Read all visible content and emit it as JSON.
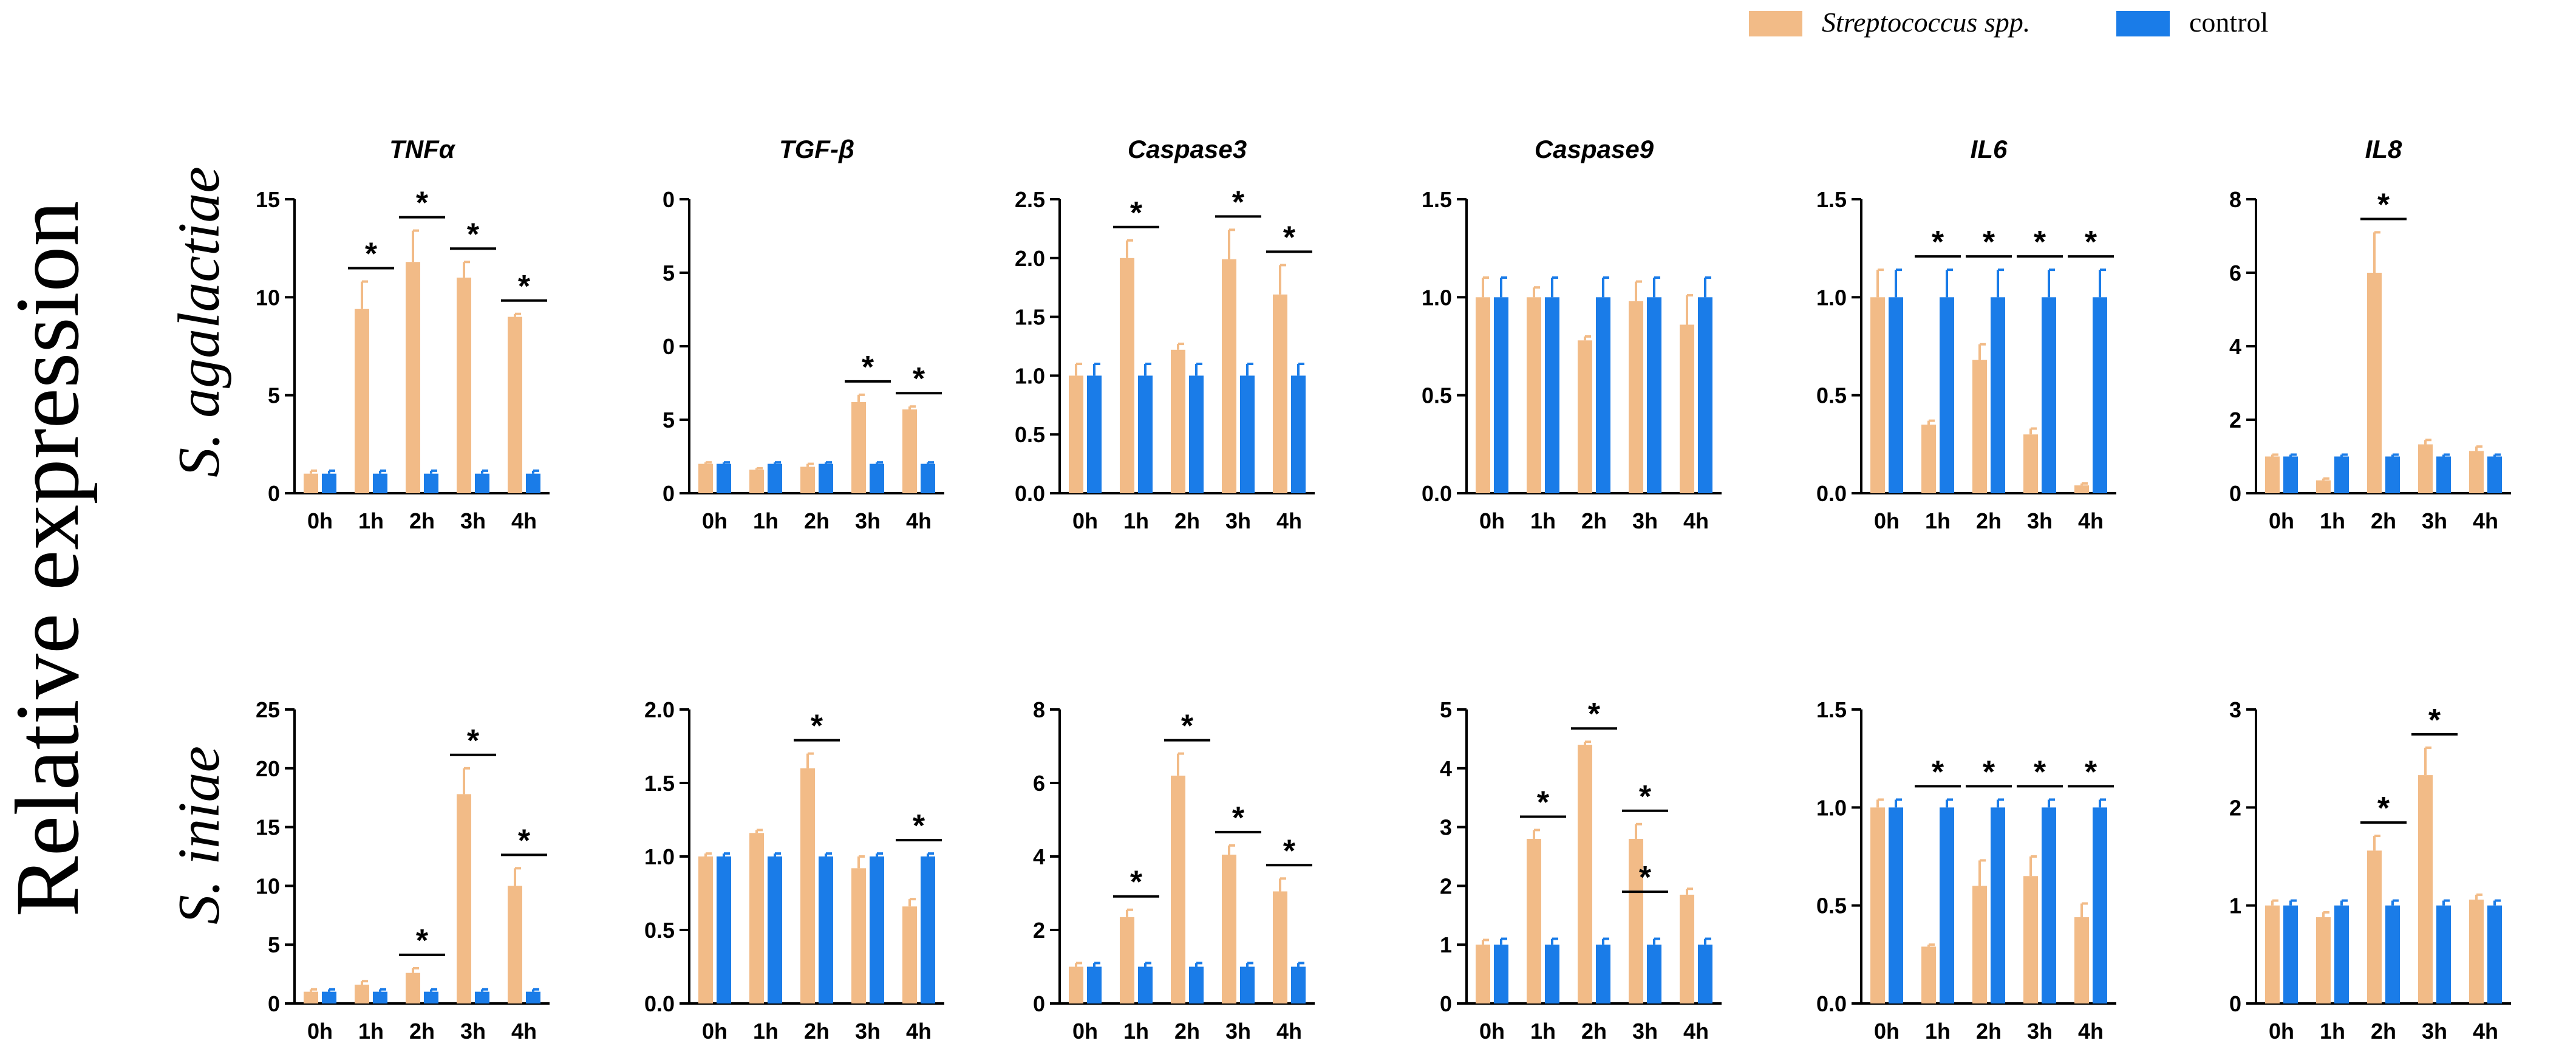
{
  "colors": {
    "infected": "#F2BB87",
    "control": "#1A7CE8",
    "axis": "#000000"
  },
  "figure": {
    "y_axis_label": "Relative expression",
    "row_labels": [
      "S. agalactiae",
      "S. iniae"
    ],
    "legend": [
      {
        "label": "Streptococcus spp.",
        "series": "infected"
      },
      {
        "label": "control",
        "series": "control"
      }
    ]
  },
  "chart_data": [
    {
      "type": "bar",
      "title": "TNFα",
      "row": 0,
      "col": 0,
      "categories": [
        "0h",
        "1h",
        "2h",
        "3h",
        "4h"
      ],
      "ylim": [
        0,
        15
      ],
      "yticks": [
        "0",
        "5",
        "10",
        "15"
      ],
      "series": [
        {
          "name": "Streptococcus spp.",
          "values": [
            1.0,
            9.4,
            11.8,
            11.0,
            9.0
          ],
          "errors": [
            0.15,
            1.4,
            1.6,
            0.8,
            0.15
          ]
        },
        {
          "name": "control",
          "values": [
            1.0,
            1.0,
            1.0,
            1.0,
            1.0
          ],
          "errors": [
            0.15,
            0.15,
            0.15,
            0.15,
            0.15
          ]
        }
      ],
      "significant": [
        "1h",
        "2h",
        "3h",
        "4h"
      ]
    },
    {
      "type": "bar",
      "title": "TGF-β",
      "row": 0,
      "col": 1,
      "categories": [
        "0h",
        "1h",
        "2h",
        "3h",
        "4h"
      ],
      "ylim": [
        0,
        10
      ],
      "yticks": [
        "0",
        "5",
        "0",
        "5",
        "0"
      ],
      "series": [
        {
          "name": "Streptococcus spp.",
          "values": [
            1.0,
            0.8,
            0.9,
            3.1,
            2.85
          ],
          "errors": [
            0.05,
            0.05,
            0.1,
            0.25,
            0.1
          ]
        },
        {
          "name": "control",
          "values": [
            1.0,
            1.0,
            1.0,
            1.0,
            1.0
          ],
          "errors": [
            0.05,
            0.05,
            0.05,
            0.05,
            0.05
          ]
        }
      ],
      "significant": [
        "3h",
        "4h"
      ]
    },
    {
      "type": "bar",
      "title": "Caspase3",
      "row": 0,
      "col": 2,
      "categories": [
        "0h",
        "1h",
        "2h",
        "3h",
        "4h"
      ],
      "ylim": [
        0,
        2.5
      ],
      "yticks": [
        "0.0",
        "0.5",
        "1.0",
        "1.5",
        "2.0",
        "2.5"
      ],
      "series": [
        {
          "name": "Streptococcus spp.",
          "values": [
            1.0,
            2.0,
            1.22,
            1.99,
            1.69
          ],
          "errors": [
            0.1,
            0.15,
            0.05,
            0.25,
            0.25
          ]
        },
        {
          "name": "control",
          "values": [
            1.0,
            1.0,
            1.0,
            1.0,
            1.0
          ],
          "errors": [
            0.1,
            0.1,
            0.1,
            0.1,
            0.1
          ]
        }
      ],
      "significant": [
        "1h",
        "3h",
        "4h"
      ]
    },
    {
      "type": "bar",
      "title": "Caspase9",
      "row": 0,
      "col": 3,
      "categories": [
        "0h",
        "1h",
        "2h",
        "3h",
        "4h"
      ],
      "ylim": [
        0,
        1.5
      ],
      "yticks": [
        "0.0",
        "0.5",
        "1.0",
        "1.5"
      ],
      "series": [
        {
          "name": "Streptococcus spp.",
          "values": [
            1.0,
            1.0,
            0.78,
            0.98,
            0.86
          ],
          "errors": [
            0.1,
            0.05,
            0.02,
            0.1,
            0.15
          ]
        },
        {
          "name": "control",
          "values": [
            1.0,
            1.0,
            1.0,
            1.0,
            1.0
          ],
          "errors": [
            0.1,
            0.1,
            0.1,
            0.1,
            0.1
          ]
        }
      ],
      "significant": []
    },
    {
      "type": "bar",
      "title": "IL6",
      "row": 0,
      "col": 4,
      "categories": [
        "0h",
        "1h",
        "2h",
        "3h",
        "4h"
      ],
      "ylim": [
        0,
        1.5
      ],
      "yticks": [
        "0.0",
        "0.5",
        "1.0",
        "1.5"
      ],
      "series": [
        {
          "name": "Streptococcus spp.",
          "values": [
            1.0,
            0.35,
            0.68,
            0.3,
            0.04
          ],
          "errors": [
            0.14,
            0.02,
            0.08,
            0.03,
            0.01
          ]
        },
        {
          "name": "control",
          "values": [
            1.0,
            1.0,
            1.0,
            1.0,
            1.0
          ],
          "errors": [
            0.14,
            0.14,
            0.14,
            0.14,
            0.14
          ]
        }
      ],
      "significant": [
        "1h",
        "2h",
        "3h",
        "4h"
      ]
    },
    {
      "type": "bar",
      "title": "IL8",
      "row": 0,
      "col": 5,
      "categories": [
        "0h",
        "1h",
        "2h",
        "3h",
        "4h"
      ],
      "ylim": [
        0,
        8
      ],
      "yticks": [
        "0",
        "2",
        "4",
        "6",
        "8"
      ],
      "series": [
        {
          "name": "Streptococcus spp.",
          "values": [
            1.0,
            0.35,
            6.0,
            1.33,
            1.15
          ],
          "errors": [
            0.05,
            0.05,
            1.1,
            0.12,
            0.12
          ]
        },
        {
          "name": "control",
          "values": [
            1.0,
            1.0,
            1.0,
            1.0,
            1.0
          ],
          "errors": [
            0.05,
            0.05,
            0.05,
            0.05,
            0.05
          ]
        }
      ],
      "significant": [
        "2h"
      ]
    },
    {
      "type": "bar",
      "title": "",
      "row": 1,
      "col": 0,
      "categories": [
        "0h",
        "1h",
        "2h",
        "3h",
        "4h"
      ],
      "ylim": [
        0,
        25
      ],
      "yticks": [
        "0",
        "5",
        "10",
        "15",
        "20",
        "25"
      ],
      "series": [
        {
          "name": "Streptococcus spp.",
          "values": [
            1.0,
            1.6,
            2.6,
            17.8,
            10.0
          ],
          "errors": [
            0.2,
            0.3,
            0.4,
            2.2,
            1.5
          ]
        },
        {
          "name": "control",
          "values": [
            1.0,
            1.0,
            1.0,
            1.0,
            1.0
          ],
          "errors": [
            0.2,
            0.2,
            0.2,
            0.2,
            0.2
          ]
        }
      ],
      "significant": [
        "2h",
        "3h",
        "4h"
      ]
    },
    {
      "type": "bar",
      "title": "",
      "row": 1,
      "col": 1,
      "categories": [
        "0h",
        "1h",
        "2h",
        "3h",
        "4h"
      ],
      "ylim": [
        0,
        2.0
      ],
      "yticks": [
        "0.0",
        "0.5",
        "1.0",
        "1.5",
        "2.0"
      ],
      "series": [
        {
          "name": "Streptococcus spp.",
          "values": [
            1.0,
            1.16,
            1.6,
            0.92,
            0.66
          ],
          "errors": [
            0.02,
            0.02,
            0.1,
            0.08,
            0.05
          ]
        },
        {
          "name": "control",
          "values": [
            1.0,
            1.0,
            1.0,
            1.0,
            1.0
          ],
          "errors": [
            0.02,
            0.02,
            0.02,
            0.02,
            0.02
          ]
        }
      ],
      "significant": [
        "2h",
        "4h"
      ]
    },
    {
      "type": "bar",
      "title": "",
      "row": 1,
      "col": 2,
      "categories": [
        "0h",
        "1h",
        "2h",
        "3h",
        "4h"
      ],
      "ylim": [
        0,
        8
      ],
      "yticks": [
        "0",
        "2",
        "4",
        "6",
        "8"
      ],
      "series": [
        {
          "name": "Streptococcus spp.",
          "values": [
            1.0,
            2.35,
            6.2,
            4.05,
            3.05
          ],
          "errors": [
            0.1,
            0.2,
            0.6,
            0.25,
            0.35
          ]
        },
        {
          "name": "control",
          "values": [
            1.0,
            1.0,
            1.0,
            1.0,
            1.0
          ],
          "errors": [
            0.1,
            0.1,
            0.1,
            0.1,
            0.1
          ]
        }
      ],
      "significant": [
        "1h",
        "2h",
        "3h",
        "4h"
      ]
    },
    {
      "type": "bar",
      "title": "",
      "row": 1,
      "col": 3,
      "categories": [
        "0h",
        "1h",
        "2h",
        "3h",
        "4h"
      ],
      "ylim": [
        0,
        5
      ],
      "yticks": [
        "0",
        "1",
        "2",
        "3",
        "4",
        "5"
      ],
      "series": [
        {
          "name": "Streptococcus spp.",
          "values": [
            1.0,
            2.8,
            4.4,
            2.8,
            1.85
          ],
          "errors": [
            0.08,
            0.15,
            0.05,
            0.25,
            0.1
          ]
        },
        {
          "name": "control",
          "values": [
            1.0,
            1.0,
            1.0,
            1.0,
            1.0
          ],
          "errors": [
            0.1,
            0.1,
            0.1,
            0.1,
            0.1
          ]
        }
      ],
      "significant": [
        "1h",
        "2h",
        "3h_a",
        "3h_b"
      ]
    },
    {
      "type": "bar",
      "title": "",
      "row": 1,
      "col": 4,
      "categories": [
        "0h",
        "1h",
        "2h",
        "3h",
        "4h"
      ],
      "ylim": [
        0,
        1.5
      ],
      "yticks": [
        "0.0",
        "0.5",
        "1.0",
        "1.5"
      ],
      "series": [
        {
          "name": "Streptococcus spp.",
          "values": [
            1.0,
            0.29,
            0.6,
            0.65,
            0.44
          ],
          "errors": [
            0.04,
            0.01,
            0.13,
            0.1,
            0.07
          ]
        },
        {
          "name": "control",
          "values": [
            1.0,
            1.0,
            1.0,
            1.0,
            1.0
          ],
          "errors": [
            0.04,
            0.04,
            0.04,
            0.04,
            0.04
          ]
        }
      ],
      "significant": [
        "1h",
        "2h",
        "3h",
        "4h"
      ]
    },
    {
      "type": "bar",
      "title": "",
      "row": 1,
      "col": 5,
      "categories": [
        "0h",
        "1h",
        "2h",
        "3h",
        "4h"
      ],
      "ylim": [
        0,
        3
      ],
      "yticks": [
        "0",
        "1",
        "2",
        "3"
      ],
      "series": [
        {
          "name": "Streptococcus spp.",
          "values": [
            1.0,
            0.88,
            1.56,
            2.33,
            1.06
          ],
          "errors": [
            0.05,
            0.05,
            0.15,
            0.28,
            0.05
          ]
        },
        {
          "name": "control",
          "values": [
            1.0,
            1.0,
            1.0,
            1.0,
            1.0
          ],
          "errors": [
            0.05,
            0.05,
            0.05,
            0.05,
            0.05
          ]
        }
      ],
      "significant": [
        "2h",
        "3h"
      ]
    }
  ]
}
